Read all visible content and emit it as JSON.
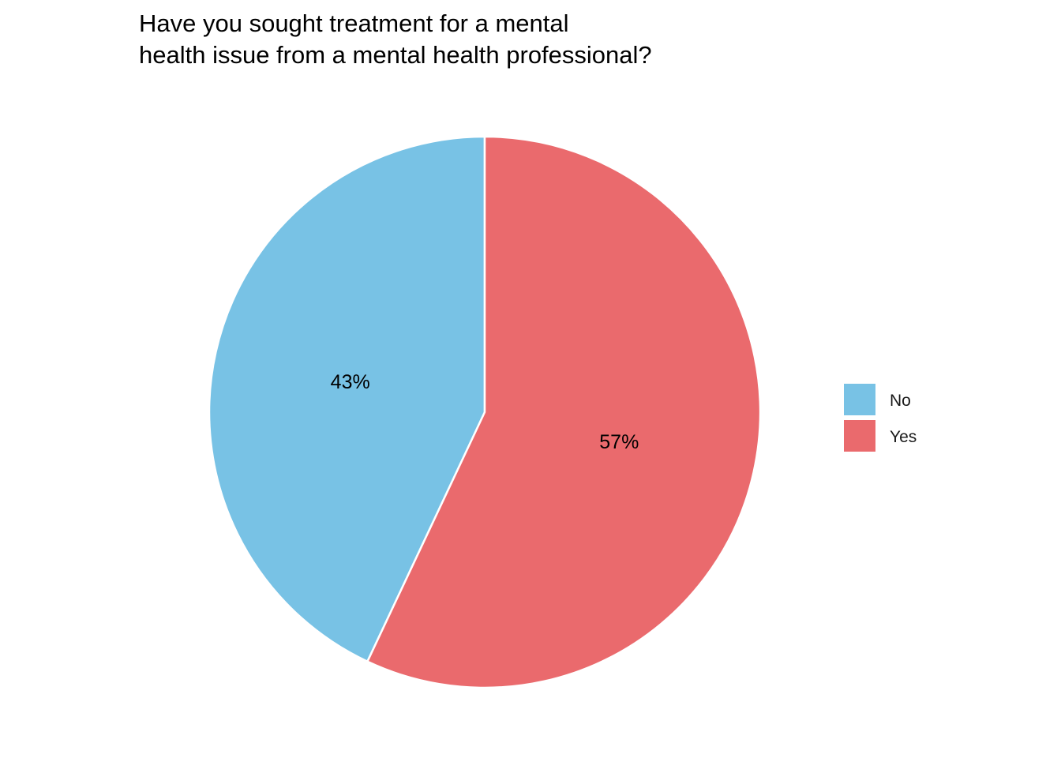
{
  "chart_data": {
    "type": "pie",
    "title_lines": [
      "Have you sought treatment for a mental",
      "health issue from a mental health professional?"
    ],
    "slices": [
      {
        "category": "No",
        "value": 43,
        "label": "43%",
        "color": "#78C2E5"
      },
      {
        "category": "Yes",
        "value": 57,
        "label": "57%",
        "color": "#EA6A6D"
      }
    ],
    "legend": {
      "position": "right",
      "items": [
        {
          "label": "No",
          "color": "#78C2E5"
        },
        {
          "label": "Yes",
          "color": "#EA6A6D"
        }
      ]
    },
    "slice_border_color": "#ffffff"
  }
}
